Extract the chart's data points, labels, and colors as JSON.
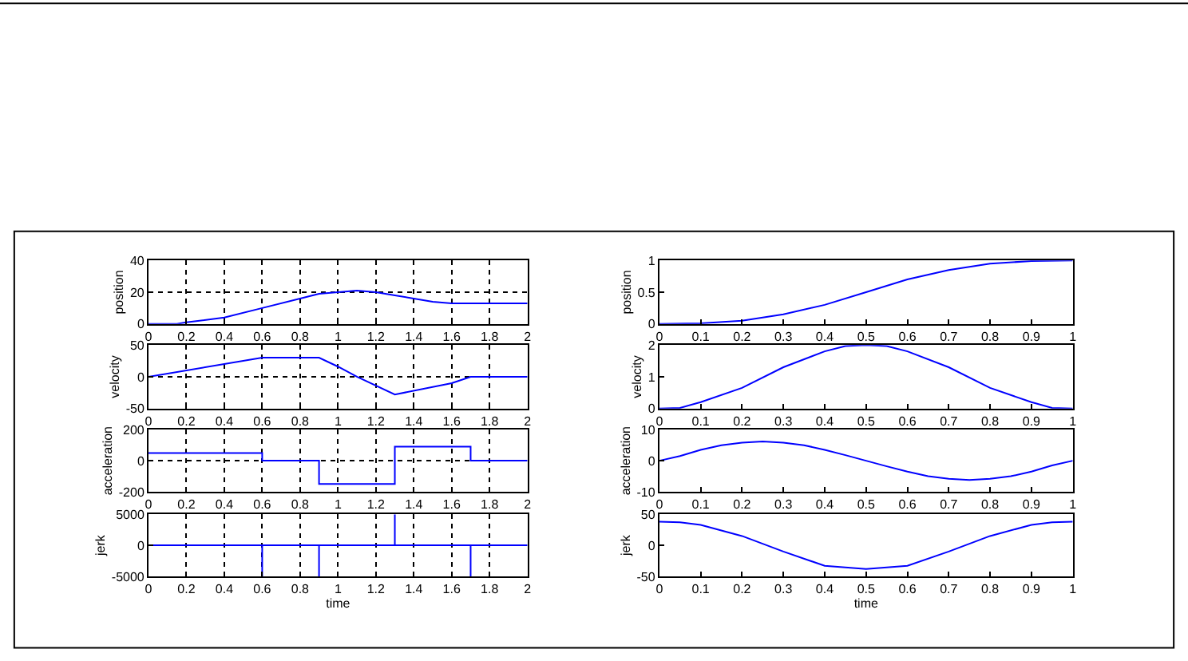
{
  "chart_data": [
    {
      "type": "line",
      "ylabel": "position",
      "grid": true,
      "marker": "none",
      "color": "#0000ff",
      "x": [
        0,
        0.15,
        0.2,
        0.4,
        0.6,
        0.8,
        0.9,
        1.0,
        1.1,
        1.2,
        1.3,
        1.4,
        1.5,
        1.6,
        2.0
      ],
      "values": [
        0,
        0,
        1,
        4,
        10,
        16,
        19,
        20,
        21,
        20,
        18,
        16,
        14,
        13,
        13
      ],
      "xlim": [
        0,
        2
      ],
      "xticks": [
        0,
        0.2,
        0.4,
        0.6,
        0.8,
        1,
        1.2,
        1.4,
        1.6,
        1.8,
        2
      ],
      "ylim": [
        0,
        40
      ],
      "yticks": [
        0,
        20,
        40
      ]
    },
    {
      "type": "line",
      "ylabel": "position",
      "marker": "none",
      "color": "#0000ff",
      "x": [
        0,
        0.1,
        0.2,
        0.3,
        0.4,
        0.5,
        0.6,
        0.7,
        0.8,
        0.9,
        1
      ],
      "values": [
        0,
        0.01,
        0.05,
        0.15,
        0.3,
        0.5,
        0.7,
        0.85,
        0.95,
        0.99,
        1
      ],
      "xlim": [
        0,
        1
      ],
      "xticks": [
        0,
        0.1,
        0.2,
        0.3,
        0.4,
        0.5,
        0.6,
        0.7,
        0.8,
        0.9,
        1
      ],
      "ylim": [
        0,
        1
      ],
      "yticks": [
        0,
        0.5,
        1
      ]
    },
    {
      "type": "line",
      "ylabel": "velocity",
      "grid": true,
      "marker": "none",
      "color": "#0000ff",
      "x": [
        0,
        0.6,
        0.9,
        1.0,
        1.1,
        1.3,
        1.6,
        1.7,
        2.0
      ],
      "values": [
        0,
        30,
        30,
        16,
        0,
        -28,
        -10,
        0,
        0
      ],
      "xlim": [
        0,
        2
      ],
      "xticks": [
        0,
        0.2,
        0.4,
        0.6,
        0.8,
        1,
        1.2,
        1.4,
        1.6,
        1.8,
        2
      ],
      "ylim": [
        -50,
        50
      ],
      "yticks": [
        -50,
        0,
        50
      ]
    },
    {
      "type": "line",
      "ylabel": "velocity",
      "marker": "none",
      "color": "#0000ff",
      "x": [
        0,
        0.05,
        0.1,
        0.2,
        0.3,
        0.4,
        0.45,
        0.5,
        0.55,
        0.6,
        0.7,
        0.8,
        0.9,
        0.95,
        1
      ],
      "values": [
        0,
        0.02,
        0.2,
        0.65,
        1.3,
        1.8,
        1.97,
        2,
        1.97,
        1.8,
        1.3,
        0.65,
        0.2,
        0.02,
        0
      ],
      "xlim": [
        0,
        1
      ],
      "xticks": [
        0,
        0.1,
        0.2,
        0.3,
        0.4,
        0.5,
        0.6,
        0.7,
        0.8,
        0.9,
        1
      ],
      "ylim": [
        0,
        2
      ],
      "yticks": [
        0,
        1,
        2
      ]
    },
    {
      "type": "step",
      "ylabel": "acceleration",
      "grid": true,
      "marker": "none",
      "color": "#0000ff",
      "x": [
        0,
        0.6,
        0.9,
        1.3,
        1.7,
        2
      ],
      "values": [
        50,
        0,
        -150,
        90,
        0,
        0
      ],
      "xlim": [
        0,
        2
      ],
      "xticks": [
        0,
        0.2,
        0.4,
        0.6,
        0.8,
        1,
        1.2,
        1.4,
        1.6,
        1.8,
        2
      ],
      "ylim": [
        -200,
        200
      ],
      "yticks": [
        -200,
        0,
        200
      ]
    },
    {
      "type": "line",
      "ylabel": "acceleration",
      "marker": "none",
      "color": "#0000ff",
      "x": [
        0,
        0.05,
        0.1,
        0.15,
        0.2,
        0.25,
        0.3,
        0.35,
        0.4,
        0.45,
        0.5,
        0.55,
        0.6,
        0.65,
        0.7,
        0.75,
        0.8,
        0.85,
        0.9,
        0.95,
        1
      ],
      "values": [
        0,
        1.5,
        3.5,
        5,
        5.8,
        6.2,
        5.8,
        5,
        3.5,
        1.8,
        0,
        -1.8,
        -3.5,
        -5,
        -5.8,
        -6.2,
        -5.8,
        -5,
        -3.5,
        -1.5,
        0
      ],
      "xlim": [
        0,
        1
      ],
      "xticks": [
        0,
        0.1,
        0.2,
        0.3,
        0.4,
        0.5,
        0.6,
        0.7,
        0.8,
        0.9,
        1
      ],
      "ylim": [
        -10,
        10
      ],
      "yticks": [
        -10,
        0,
        10
      ]
    },
    {
      "type": "line",
      "ylabel": "jerk",
      "xlabel": "time",
      "grid": true,
      "marker": "none",
      "color": "#0000ff",
      "x": [
        0,
        0.6,
        0.6,
        0.6,
        0.9,
        0.9,
        0.9,
        1.3,
        1.3,
        1.3,
        1.7,
        1.7,
        1.7,
        2
      ],
      "values": [
        0,
        0,
        -5000,
        0,
        0,
        -5000,
        0,
        0,
        5000,
        0,
        0,
        -5000,
        0,
        0
      ],
      "xlim": [
        0,
        2
      ],
      "xticks": [
        0,
        0.2,
        0.4,
        0.6,
        0.8,
        1,
        1.2,
        1.4,
        1.6,
        1.8,
        2
      ],
      "ylim": [
        -5000,
        5000
      ],
      "yticks": [
        -5000,
        0,
        5000
      ]
    },
    {
      "type": "line",
      "ylabel": "jerk",
      "xlabel": "time",
      "marker": "none",
      "color": "#0000ff",
      "x": [
        0,
        0.05,
        0.1,
        0.2,
        0.3,
        0.4,
        0.5,
        0.6,
        0.7,
        0.8,
        0.9,
        0.95,
        1
      ],
      "values": [
        38,
        37,
        33,
        15,
        -10,
        -33,
        -38,
        -33,
        -10,
        15,
        33,
        37,
        38
      ],
      "xlim": [
        0,
        1
      ],
      "xticks": [
        0,
        0.1,
        0.2,
        0.3,
        0.4,
        0.5,
        0.6,
        0.7,
        0.8,
        0.9,
        1
      ],
      "ylim": [
        -50,
        50
      ],
      "yticks": [
        -50,
        0,
        50
      ]
    }
  ]
}
